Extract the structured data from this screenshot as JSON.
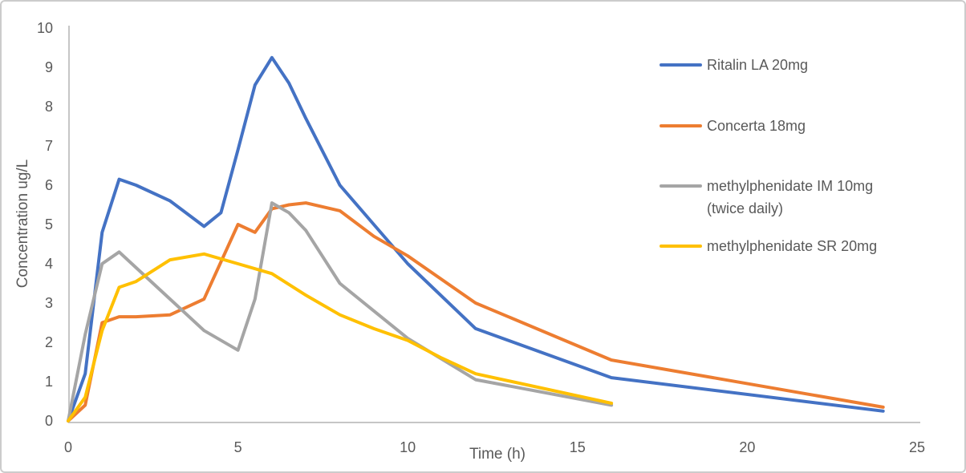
{
  "figure": {
    "background": "#ffffff",
    "border_color": "#cccccc"
  },
  "chart_data": {
    "type": "line",
    "title": "",
    "xlabel": "Time (h)",
    "ylabel": "Concentration ug/L",
    "xlim": [
      0,
      25
    ],
    "ylim": [
      0,
      10
    ],
    "x_ticks": [
      0,
      5,
      10,
      15,
      20,
      25
    ],
    "y_ticks": [
      0,
      1,
      2,
      3,
      4,
      5,
      6,
      7,
      8,
      9,
      10
    ],
    "grid": false,
    "legend_position": "right",
    "axis_line_color": "#c6c6c6",
    "text_color": "#595959",
    "series": [
      {
        "name": "Ritalin LA 20mg",
        "legend_lines": [
          "Ritalin LA 20mg"
        ],
        "color": "#4472C4",
        "points": [
          [
            0,
            0
          ],
          [
            0.5,
            1.2
          ],
          [
            1,
            4.8
          ],
          [
            1.5,
            6.15
          ],
          [
            2,
            6.0
          ],
          [
            3,
            5.6
          ],
          [
            4,
            4.95
          ],
          [
            4.5,
            5.3
          ],
          [
            5,
            6.9
          ],
          [
            5.5,
            8.55
          ],
          [
            6,
            9.25
          ],
          [
            6.5,
            8.6
          ],
          [
            7,
            7.7
          ],
          [
            8,
            6.0
          ],
          [
            9,
            5.0
          ],
          [
            10,
            4.0
          ],
          [
            12,
            2.35
          ],
          [
            16,
            1.1
          ],
          [
            24,
            0.25
          ]
        ]
      },
      {
        "name": "Concerta 18mg",
        "legend_lines": [
          "Concerta 18mg"
        ],
        "color": "#ED7D31",
        "points": [
          [
            0,
            0
          ],
          [
            0.5,
            0.4
          ],
          [
            1,
            2.5
          ],
          [
            1.5,
            2.65
          ],
          [
            2,
            2.65
          ],
          [
            3,
            2.7
          ],
          [
            4,
            3.1
          ],
          [
            5,
            5.0
          ],
          [
            5.5,
            4.8
          ],
          [
            6,
            5.4
          ],
          [
            6.5,
            5.5
          ],
          [
            7,
            5.55
          ],
          [
            8,
            5.35
          ],
          [
            9,
            4.7
          ],
          [
            10,
            4.2
          ],
          [
            12,
            3.0
          ],
          [
            16,
            1.55
          ],
          [
            24,
            0.35
          ]
        ]
      },
      {
        "name": "methylphenidate IM 10mg (twice daily)",
        "legend_lines": [
          "methylphenidate IM 10mg",
          "(twice daily)"
        ],
        "color": "#A5A5A5",
        "points": [
          [
            0,
            0
          ],
          [
            0.5,
            2.2
          ],
          [
            1,
            4.0
          ],
          [
            1.5,
            4.3
          ],
          [
            2,
            3.9
          ],
          [
            3,
            3.1
          ],
          [
            4,
            2.3
          ],
          [
            5,
            1.8
          ],
          [
            5.5,
            3.1
          ],
          [
            6,
            5.55
          ],
          [
            6.5,
            5.3
          ],
          [
            7,
            4.85
          ],
          [
            8,
            3.5
          ],
          [
            9,
            2.8
          ],
          [
            10,
            2.1
          ],
          [
            12,
            1.05
          ],
          [
            16,
            0.4
          ]
        ]
      },
      {
        "name": "methylphenidate SR 20mg",
        "legend_lines": [
          "methylphenidate SR 20mg"
        ],
        "color": "#FFC000",
        "points": [
          [
            0,
            0
          ],
          [
            0.5,
            0.6
          ],
          [
            1,
            2.3
          ],
          [
            1.5,
            3.4
          ],
          [
            2,
            3.55
          ],
          [
            3,
            4.1
          ],
          [
            4,
            4.25
          ],
          [
            5,
            4.0
          ],
          [
            6,
            3.75
          ],
          [
            7,
            3.2
          ],
          [
            8,
            2.7
          ],
          [
            9,
            2.35
          ],
          [
            10,
            2.05
          ],
          [
            11,
            1.6
          ],
          [
            12,
            1.2
          ],
          [
            16,
            0.45
          ]
        ]
      }
    ]
  }
}
